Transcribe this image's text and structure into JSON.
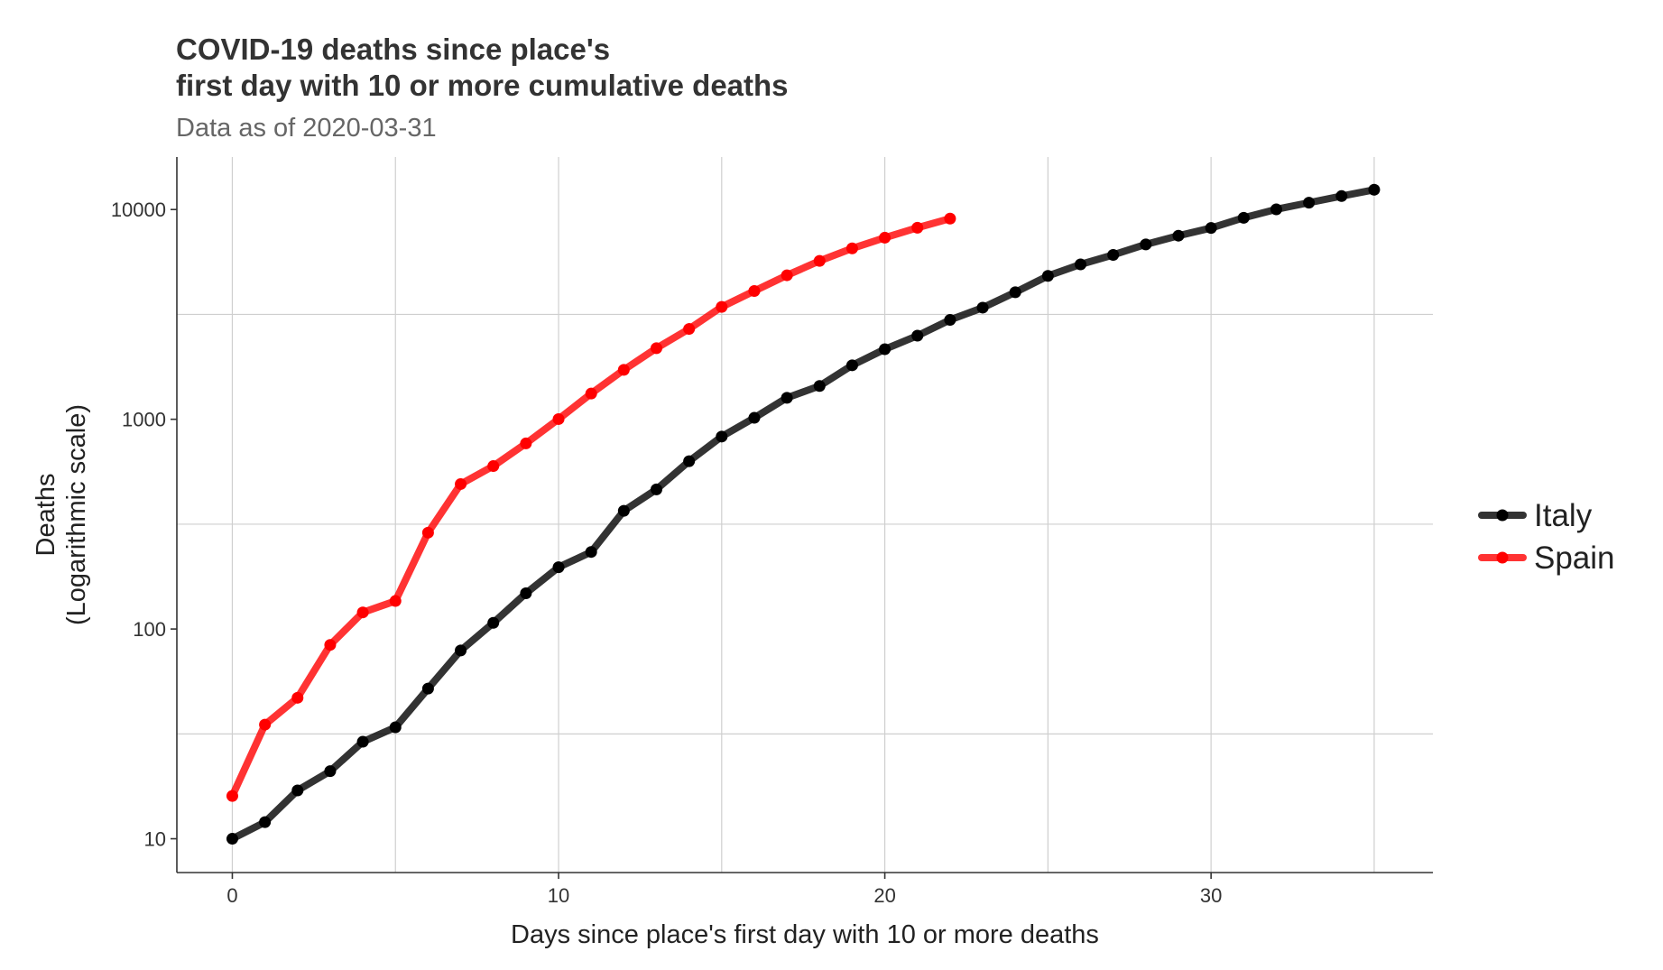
{
  "chart_data": {
    "type": "line",
    "title_lines": [
      "COVID-19 deaths since place's",
      "first day with 10 or more cumulative deaths"
    ],
    "subtitle": "Data as of 2020-03-31",
    "xlabel": "Days since place's first day with 10 or more deaths",
    "ylabel_lines": [
      "Deaths",
      "(Logarithmic scale)"
    ],
    "y_scale": "log10",
    "xlim": [
      -1.7,
      36.8
    ],
    "ylim": [
      6.9,
      17800
    ],
    "x_ticks": [
      0,
      10,
      20,
      30
    ],
    "x_tick_labels": [
      "0",
      "10",
      "20",
      "30"
    ],
    "y_ticks": [
      10,
      100,
      1000,
      10000
    ],
    "y_tick_labels": [
      "10",
      "100",
      "1000",
      "10000"
    ],
    "x_minor_gridlines": [
      5,
      15,
      25,
      35
    ],
    "y_minor_gridlines": [
      31.6,
      316,
      3162
    ],
    "grid": true,
    "legend_position": "right",
    "series": [
      {
        "name": "Italy",
        "color": "#000000",
        "x": [
          0,
          1,
          2,
          3,
          4,
          5,
          6,
          7,
          8,
          9,
          10,
          11,
          12,
          13,
          14,
          15,
          16,
          17,
          18,
          19,
          20,
          21,
          22,
          23,
          24,
          25,
          26,
          27,
          28,
          29,
          30,
          31,
          32,
          33,
          34,
          35
        ],
        "values": [
          10,
          12,
          17,
          21,
          29,
          34,
          52,
          79,
          107,
          148,
          197,
          233,
          366,
          463,
          631,
          827,
          1016,
          1266,
          1441,
          1809,
          2158,
          2503,
          2978,
          3405,
          4032,
          4825,
          5476,
          6077,
          6820,
          7503,
          8165,
          9134,
          10023,
          10779,
          11591,
          12428
        ]
      },
      {
        "name": "Spain",
        "color": "#ff0000",
        "x": [
          0,
          1,
          2,
          3,
          4,
          5,
          6,
          7,
          8,
          9,
          10,
          11,
          12,
          13,
          14,
          15,
          16,
          17,
          18,
          19,
          20,
          21,
          22
        ],
        "values": [
          16,
          35,
          47,
          84,
          120,
          136,
          288,
          491,
          598,
          767,
          1002,
          1326,
          1720,
          2182,
          2696,
          3434,
          4089,
          4858,
          5690,
          6528,
          7340,
          8189,
          9053
        ]
      }
    ]
  }
}
